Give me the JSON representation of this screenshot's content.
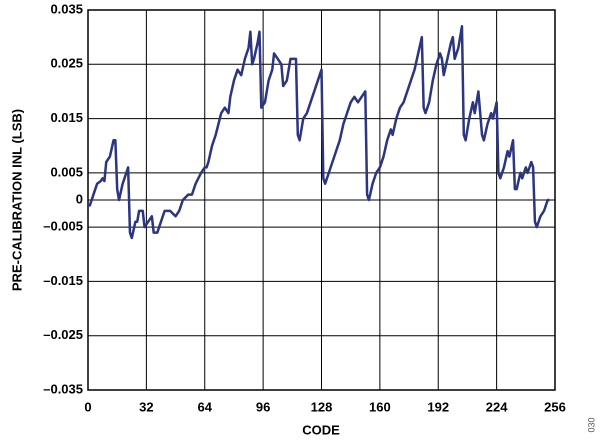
{
  "chart_data": {
    "type": "line",
    "xlabel": "CODE",
    "ylabel": "PRE-CALIBRATION INL (LSB)",
    "side_note": "030",
    "x": [
      0,
      1,
      3,
      5,
      7,
      8,
      9,
      10,
      12,
      14,
      15,
      16,
      17,
      19,
      21,
      22,
      23,
      24,
      26,
      27,
      28,
      30,
      31,
      33,
      35,
      36,
      38,
      40,
      42,
      45,
      48,
      50,
      52,
      55,
      57,
      59,
      62,
      64,
      65,
      66,
      68,
      70,
      73,
      75,
      77,
      78,
      80,
      82,
      84,
      86,
      88,
      89,
      90,
      91,
      93,
      94,
      95,
      97,
      99,
      101,
      102,
      104,
      106,
      107,
      109,
      111,
      114,
      115,
      116,
      118,
      120,
      122,
      124,
      126,
      128,
      129,
      130,
      132,
      134,
      136,
      138,
      140,
      142,
      144,
      146,
      148,
      150,
      152,
      153,
      154,
      156,
      158,
      160,
      162,
      164,
      166,
      167,
      169,
      171,
      173,
      175,
      177,
      179,
      181,
      183,
      184,
      185,
      187,
      189,
      191,
      193,
      194,
      195,
      197,
      199,
      200,
      201,
      203,
      205,
      206,
      207,
      209,
      211,
      212,
      214,
      216,
      217,
      219,
      221,
      222,
      224,
      225,
      226,
      228,
      230,
      231,
      233,
      234,
      235,
      237,
      238,
      240,
      241,
      243,
      244,
      245,
      246,
      248,
      250,
      252,
      253
    ],
    "values": [
      -0.001,
      -0.001,
      0.001,
      0.003,
      0.0035,
      0.004,
      0.0035,
      0.007,
      0.008,
      0.011,
      0.011,
      0.002,
      0.0,
      0.003,
      0.005,
      0.006,
      -0.006,
      -0.007,
      -0.004,
      -0.004,
      -0.002,
      -0.002,
      -0.005,
      -0.004,
      -0.003,
      -0.006,
      -0.006,
      -0.004,
      -0.002,
      -0.002,
      -0.003,
      -0.002,
      0.0,
      0.001,
      0.001,
      0.003,
      0.005,
      0.006,
      0.006,
      0.007,
      0.01,
      0.012,
      0.016,
      0.017,
      0.016,
      0.019,
      0.022,
      0.024,
      0.023,
      0.026,
      0.028,
      0.031,
      0.025,
      0.026,
      0.029,
      0.031,
      0.017,
      0.018,
      0.022,
      0.024,
      0.027,
      0.026,
      0.025,
      0.021,
      0.022,
      0.026,
      0.026,
      0.012,
      0.011,
      0.015,
      0.016,
      0.018,
      0.02,
      0.022,
      0.024,
      0.004,
      0.003,
      0.005,
      0.007,
      0.009,
      0.011,
      0.014,
      0.016,
      0.018,
      0.019,
      0.018,
      0.019,
      0.02,
      0.001,
      0.0,
      0.003,
      0.005,
      0.006,
      0.008,
      0.011,
      0.013,
      0.012,
      0.015,
      0.017,
      0.018,
      0.02,
      0.022,
      0.024,
      0.027,
      0.03,
      0.017,
      0.016,
      0.018,
      0.022,
      0.025,
      0.027,
      0.026,
      0.023,
      0.026,
      0.029,
      0.03,
      0.026,
      0.028,
      0.032,
      0.012,
      0.011,
      0.015,
      0.018,
      0.016,
      0.02,
      0.012,
      0.011,
      0.014,
      0.016,
      0.015,
      0.018,
      0.005,
      0.004,
      0.006,
      0.009,
      0.008,
      0.011,
      0.002,
      0.002,
      0.005,
      0.004,
      0.006,
      0.005,
      0.007,
      0.006,
      -0.004,
      -0.005,
      -0.003,
      -0.002,
      0.0,
      0.0
    ],
    "color": "#2b3580",
    "xlim": [
      0,
      256
    ],
    "xticks": [
      0,
      32,
      64,
      96,
      128,
      160,
      192,
      224,
      256
    ],
    "ylim": [
      -0.035,
      0.035
    ],
    "yticks": [
      {
        "value": -0.035,
        "label": "–0.035"
      },
      {
        "value": -0.025,
        "label": "–0.025"
      },
      {
        "value": -0.015,
        "label": "–0.015"
      },
      {
        "value": -0.005,
        "label": "–0.005"
      },
      0,
      0.005,
      0.015,
      0.025,
      0.035
    ],
    "grid": true
  }
}
